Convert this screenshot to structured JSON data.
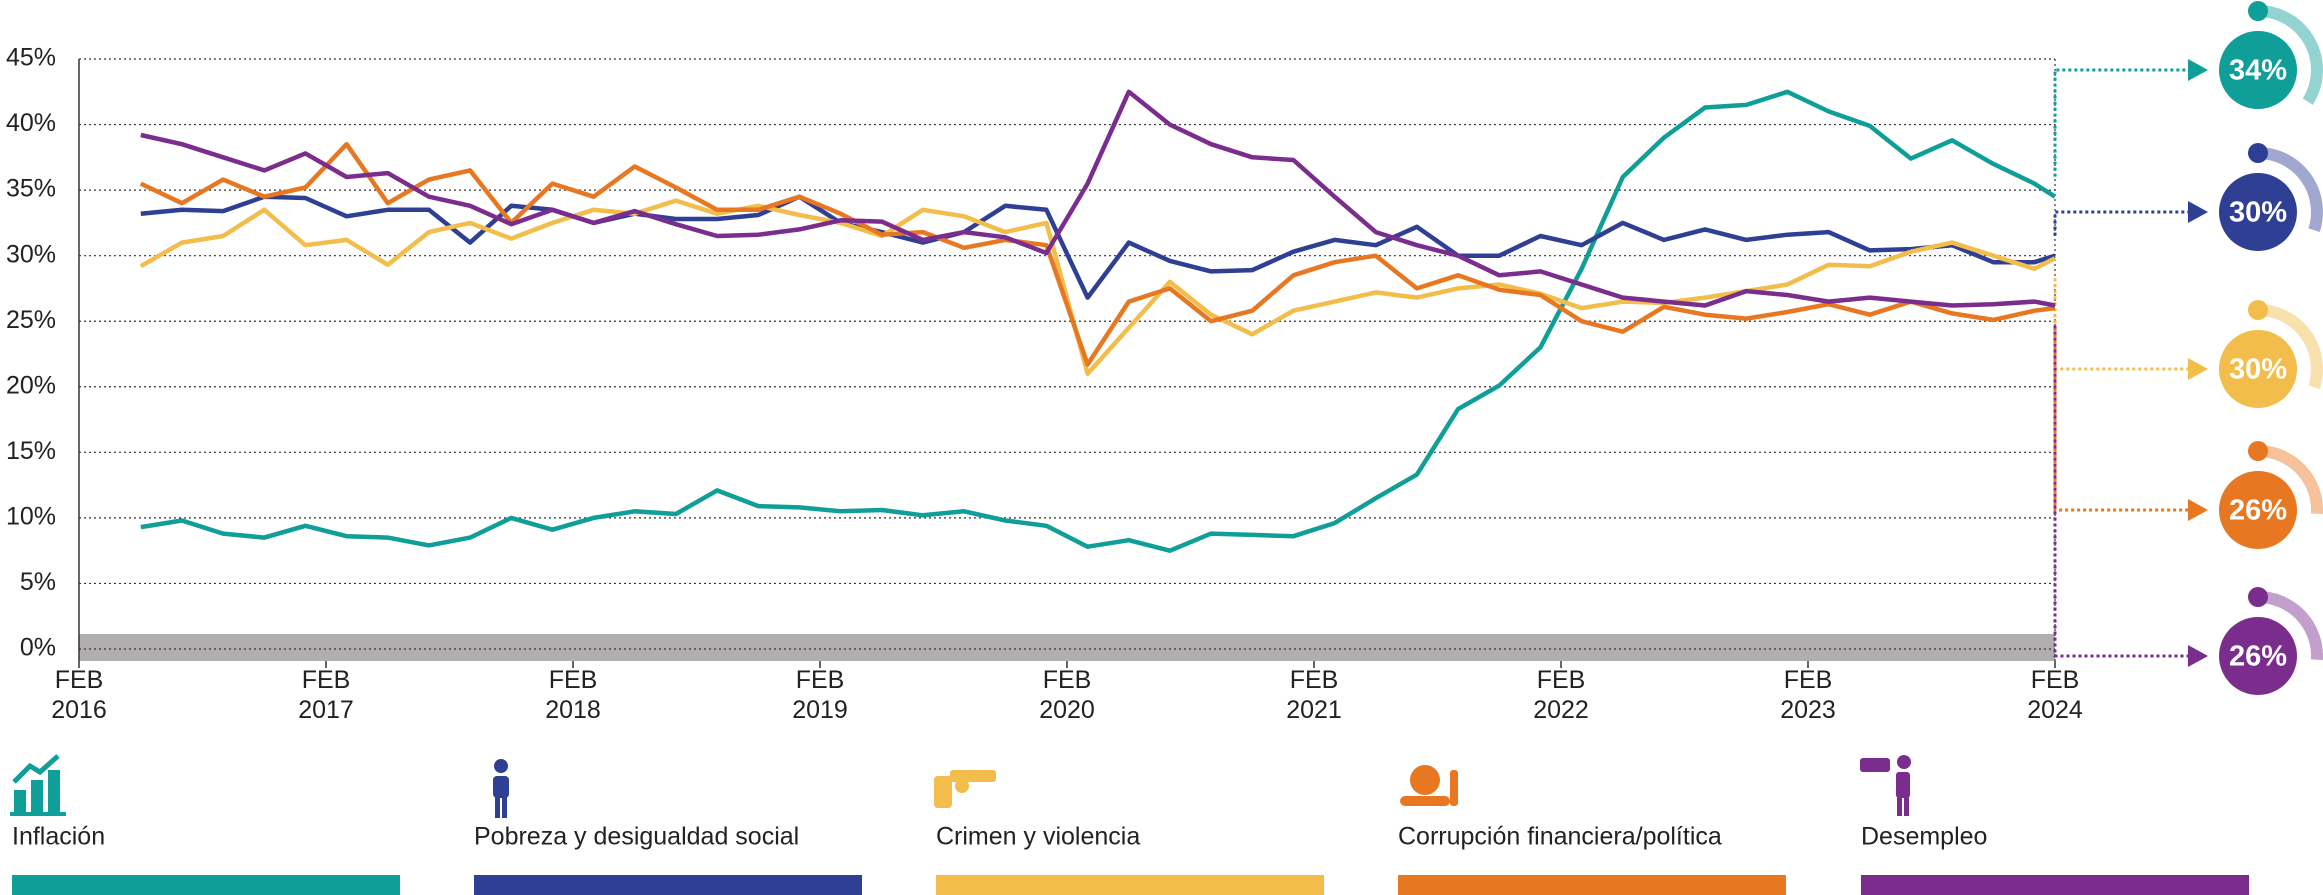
{
  "chart_data": {
    "type": "line",
    "x": [
      "2016-05",
      "2016-07",
      "2016-09",
      "2016-11",
      "2017-01",
      "2017-03",
      "2017-05",
      "2017-07",
      "2017-09",
      "2017-11",
      "2018-01",
      "2018-03",
      "2018-05",
      "2018-07",
      "2018-09",
      "2018-11",
      "2019-01",
      "2019-03",
      "2019-05",
      "2019-07",
      "2019-09",
      "2019-11",
      "2020-01",
      "2020-03",
      "2020-05",
      "2020-07",
      "2020-09",
      "2020-11",
      "2021-01",
      "2021-03",
      "2021-05",
      "2021-07",
      "2021-09",
      "2021-11",
      "2022-01",
      "2022-03",
      "2022-05",
      "2022-07",
      "2022-09",
      "2022-11",
      "2023-01",
      "2023-03",
      "2023-05",
      "2023-07",
      "2023-09",
      "2023-11",
      "2024-01",
      "2024-02"
    ],
    "xlim": [
      "2016-02",
      "2024-02"
    ],
    "xticks": [
      {
        "value": "2016-02",
        "label": "FEB 2016"
      },
      {
        "value": "2017-02",
        "label": "FEB 2017"
      },
      {
        "value": "2018-02",
        "label": "FEB 2018"
      },
      {
        "value": "2019-02",
        "label": "FEB 2019"
      },
      {
        "value": "2020-02",
        "label": "FEB 2020"
      },
      {
        "value": "2021-02",
        "label": "FEB 2021"
      },
      {
        "value": "2022-02",
        "label": "FEB 2022"
      },
      {
        "value": "2023-02",
        "label": "FEB 2023"
      },
      {
        "value": "2024-02",
        "label": "FEB 2024"
      }
    ],
    "ylim": [
      0,
      45
    ],
    "yticks": [
      {
        "value": 0,
        "label": "0%"
      },
      {
        "value": 5,
        "label": "5%"
      },
      {
        "value": 10,
        "label": "10%"
      },
      {
        "value": 15,
        "label": "15%"
      },
      {
        "value": 20,
        "label": "20%"
      },
      {
        "value": 25,
        "label": "25%"
      },
      {
        "value": 30,
        "label": "30%"
      },
      {
        "value": 35,
        "label": "35%"
      },
      {
        "value": 40,
        "label": "40%"
      },
      {
        "value": 45,
        "label": "45%"
      }
    ],
    "grid": true,
    "series": [
      {
        "name": "Inflación",
        "color": "#0f9e98",
        "latest": 34,
        "latest_label": "34%",
        "values": [
          9.3,
          9.8,
          8.8,
          8.5,
          9.4,
          8.6,
          8.5,
          7.9,
          8.5,
          10,
          9.1,
          10,
          10.5,
          10.3,
          12.1,
          10.9,
          10.8,
          10.5,
          10.6,
          10.2,
          10.5,
          9.8,
          9.4,
          7.8,
          8.3,
          7.5,
          8.8,
          8.7,
          8.6,
          9.6,
          11.5,
          13.3,
          18.3,
          20.1,
          23,
          29,
          36,
          39,
          41.3,
          41.5,
          42.5,
          41,
          39.9,
          37.4,
          38.8,
          37,
          35.5,
          34.5
        ]
      },
      {
        "name": "Pobreza y desigualdad social",
        "color": "#2e3f94",
        "latest": 30,
        "latest_label": "30%",
        "values": [
          33.2,
          33.5,
          33.4,
          34.5,
          34.4,
          33,
          33.5,
          33.5,
          31,
          33.8,
          33.5,
          32.5,
          33.2,
          32.8,
          32.8,
          33.1,
          34.5,
          32.5,
          31.8,
          31,
          31.8,
          33.8,
          33.5,
          26.8,
          31,
          29.6,
          28.8,
          28.9,
          30.3,
          31.2,
          30.8,
          32.2,
          30,
          30,
          31.5,
          30.8,
          32.5,
          31.2,
          32,
          31.2,
          31.6,
          31.8,
          30.4,
          30.5,
          30.8,
          29.5,
          29.5,
          30
        ]
      },
      {
        "name": "Crimen y violencia",
        "color": "#f2bd4a",
        "latest": 30,
        "latest_label": "30%",
        "values": [
          29.2,
          31,
          31.5,
          33.5,
          30.8,
          31.2,
          29.3,
          31.8,
          32.5,
          31.3,
          32.5,
          33.5,
          33.2,
          34.2,
          33.2,
          33.8,
          33.1,
          32.5,
          31.5,
          33.5,
          33,
          31.8,
          32.5,
          21,
          24.5,
          28,
          25.5,
          24,
          25.8,
          26.5,
          27.2,
          26.8,
          27.5,
          27.8,
          27.1,
          26,
          26.5,
          26.4,
          26.8,
          27.3,
          27.8,
          29.3,
          29.2,
          30.3,
          31,
          30,
          29,
          29.8
        ]
      },
      {
        "name": "Corrupción financiera/política",
        "color": "#e87722",
        "latest": 26,
        "latest_label": "26%",
        "values": [
          35.5,
          34,
          35.8,
          34.5,
          35.2,
          38.5,
          34,
          35.8,
          36.5,
          32.5,
          35.5,
          34.5,
          36.8,
          35.2,
          33.5,
          33.5,
          34.5,
          33.2,
          31.6,
          31.8,
          30.6,
          31.2,
          30.8,
          21.7,
          26.5,
          27.5,
          25,
          25.8,
          28.5,
          29.5,
          30,
          27.5,
          28.5,
          27.4,
          27,
          25,
          24.2,
          26.1,
          25.5,
          25.2,
          25.7,
          26.3,
          25.5,
          26.5,
          25.6,
          25.1,
          25.8,
          26
        ]
      },
      {
        "name": "Desempleo",
        "color": "#7b2d8e",
        "latest": 26,
        "latest_label": "26%",
        "values": [
          39.2,
          38.5,
          37.5,
          36.5,
          37.8,
          36,
          36.3,
          34.5,
          33.8,
          32.4,
          33.5,
          32.5,
          33.4,
          32.4,
          31.5,
          31.6,
          32,
          32.7,
          32.6,
          31.2,
          31.8,
          31.4,
          30.2,
          35.5,
          42.5,
          40,
          38.5,
          37.5,
          37.3,
          34.5,
          31.8,
          30.8,
          30,
          28.5,
          28.8,
          27.8,
          26.8,
          26.5,
          26.2,
          27.3,
          27,
          26.5,
          26.8,
          26.5,
          26.2,
          26.3,
          26.5,
          26.2
        ]
      }
    ]
  }
}
